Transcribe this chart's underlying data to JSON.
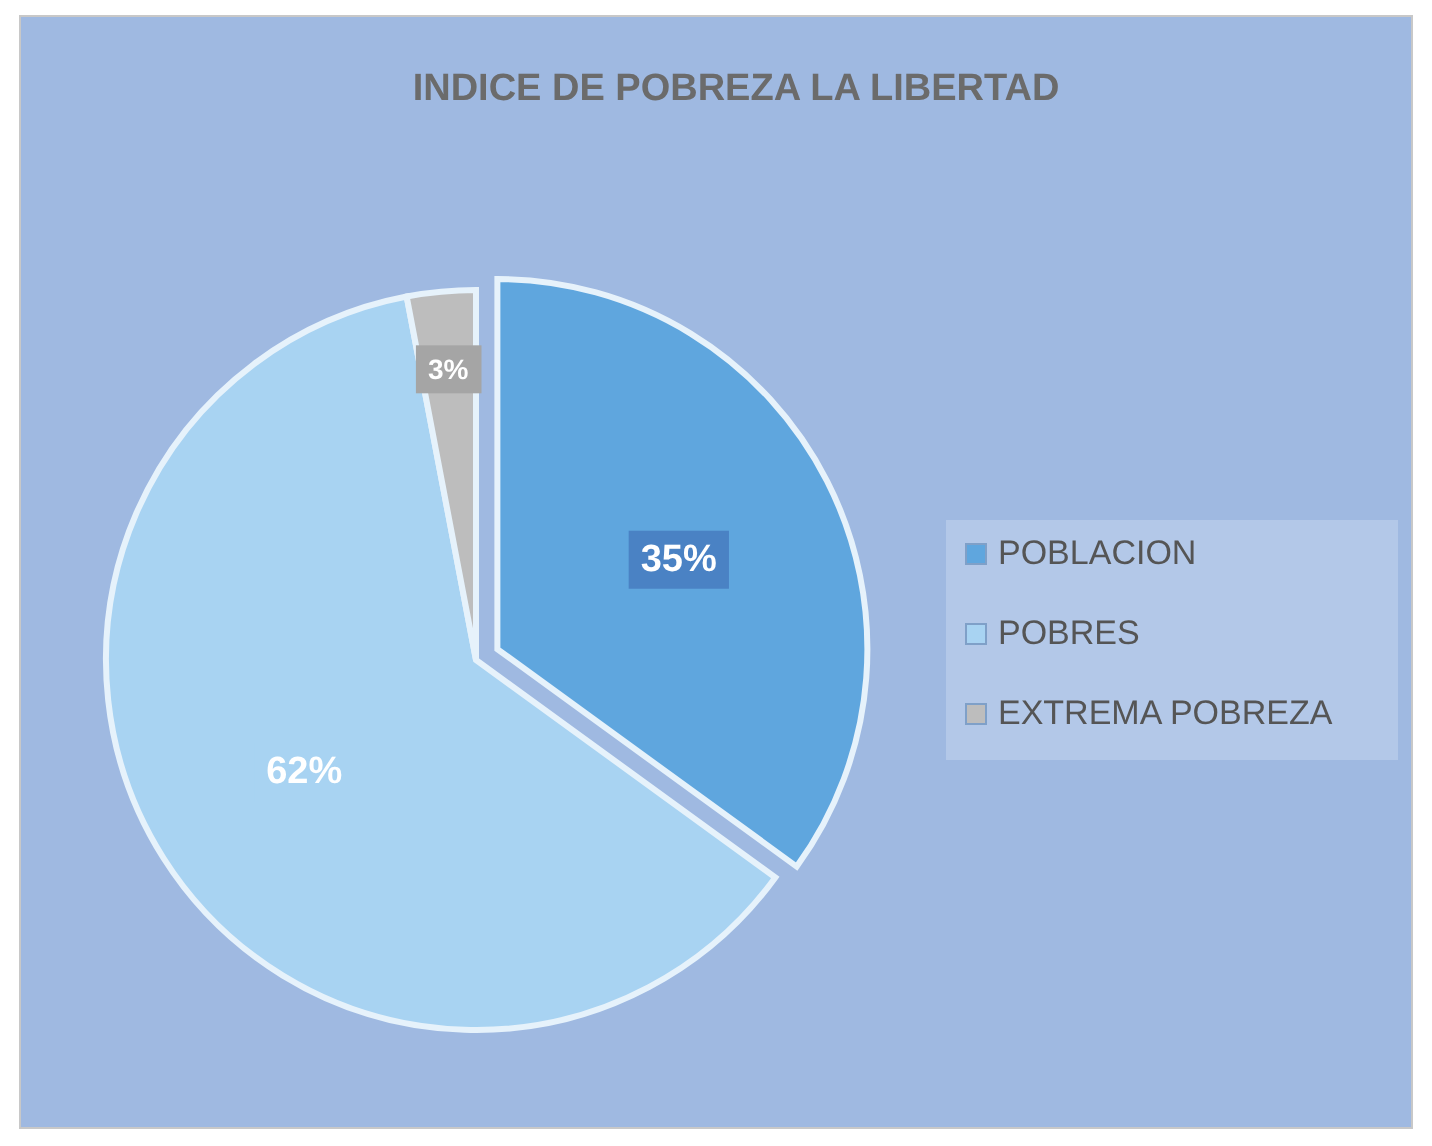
{
  "chart_data": {
    "type": "pie",
    "title": "INDICE DE POBREZA LA LIBERTAD",
    "categories": [
      "POBLACION",
      "POBRES",
      "EXTREMA POBREZA"
    ],
    "values": [
      35,
      62,
      3
    ],
    "colors": [
      "#5fa6de",
      "#a8d3f2",
      "#bdbdbd"
    ],
    "value_labels": [
      "35%",
      "62%",
      "3%"
    ],
    "legend": "right"
  }
}
